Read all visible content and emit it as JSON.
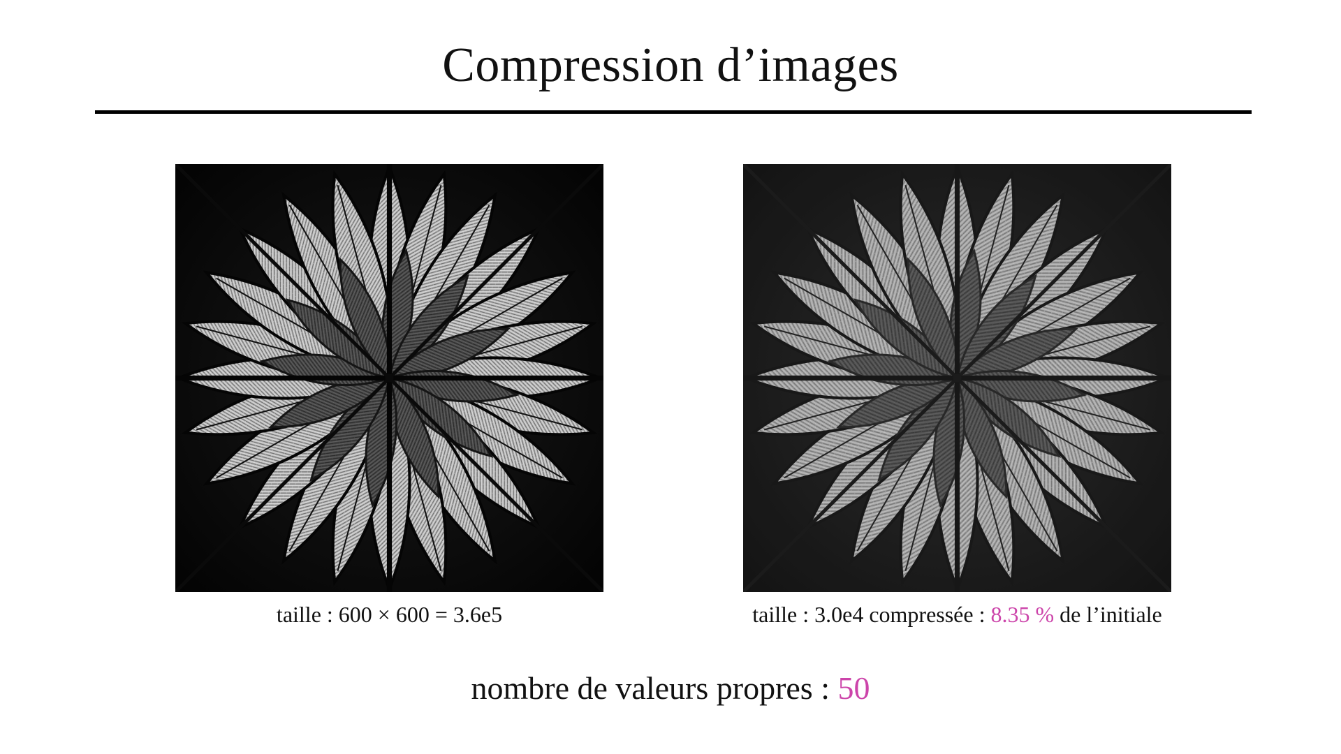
{
  "slide": {
    "title": "Compression d’images",
    "left_caption": "taille : 600 × 600 = 3.6e5",
    "right_caption": {
      "prefix": "taille : 3.0e4 compressée : ",
      "ratio": "8.35 %",
      "suffix": " de l’initiale"
    },
    "bottom": {
      "label": "nombre de valeurs propres : ",
      "value": "50"
    }
  },
  "colors": {
    "accent": "#cc44aa",
    "rule": "#000000",
    "background": "#ffffff"
  }
}
